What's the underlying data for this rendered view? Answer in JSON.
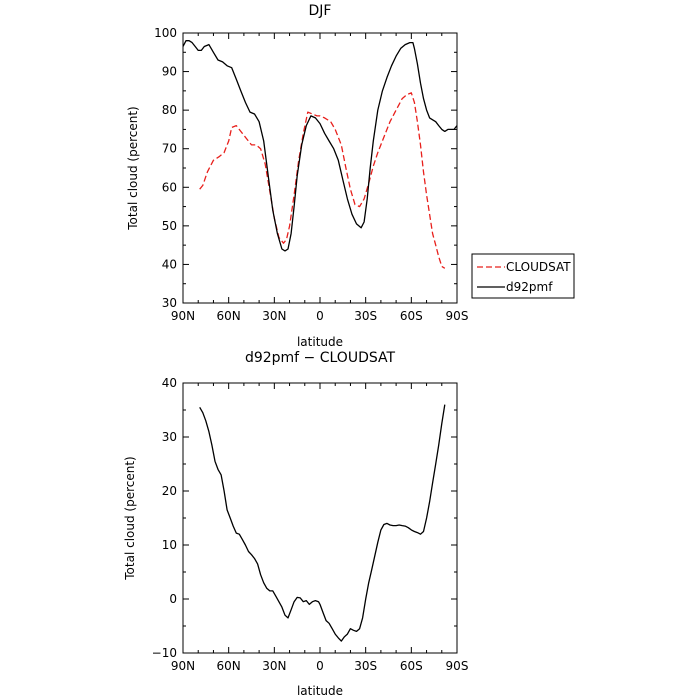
{
  "chart_data": [
    {
      "type": "line",
      "title": "DJF",
      "xlabel": "latitude",
      "ylabel": "Total cloud (percent)",
      "xlim": [
        90,
        -90
      ],
      "ylim": [
        30,
        100
      ],
      "x_ticks": [
        90,
        60,
        30,
        0,
        -30,
        -60,
        -90
      ],
      "x_tick_labels": [
        "90N",
        "60N",
        "30N",
        "0",
        "30S",
        "60S",
        "90S"
      ],
      "y_ticks": [
        30,
        40,
        50,
        60,
        70,
        80,
        90,
        100
      ],
      "y_tick_labels": [
        "30",
        "40",
        "50",
        "60",
        "70",
        "80",
        "90",
        "100"
      ],
      "legend": "outside-right",
      "series": [
        {
          "name": "CLOUDSAT",
          "color": "#e8201c",
          "dash": "dashed",
          "x": [
            79,
            77,
            74,
            70,
            66,
            63,
            60,
            58,
            55,
            52,
            48,
            45,
            42,
            39,
            36,
            33,
            30,
            27,
            24,
            22,
            20,
            17,
            14,
            11,
            8,
            5,
            2,
            0,
            -3,
            -7,
            -10,
            -14,
            -17,
            -20,
            -23,
            -26,
            -29,
            -32,
            -35,
            -38,
            -42,
            -46,
            -50,
            -54,
            -57,
            -60,
            -62,
            -64,
            -66,
            -68,
            -70,
            -72,
            -74,
            -76,
            -78,
            -80,
            -82
          ],
          "values": [
            59.5,
            60.5,
            64,
            67,
            68,
            69,
            72,
            75.5,
            76,
            74.5,
            72.5,
            71,
            71,
            70,
            66,
            59,
            52,
            47,
            45.5,
            46.5,
            50,
            58,
            67,
            74,
            79.5,
            79,
            78.5,
            78.5,
            78,
            77,
            75,
            71,
            65,
            59.5,
            55.5,
            55,
            57,
            61,
            65.5,
            69,
            73,
            77,
            80,
            83,
            84,
            84.5,
            82,
            77,
            71,
            64,
            58,
            53,
            48,
            45,
            42,
            39.5,
            39
          ]
        },
        {
          "name": "d92pmf",
          "color": "#000000",
          "dash": "solid",
          "x": [
            90,
            88,
            86,
            84,
            82,
            80,
            78,
            76,
            73,
            70,
            67,
            64,
            61,
            58,
            55,
            52,
            49,
            46,
            43,
            40,
            37,
            34,
            31,
            28,
            25,
            23,
            21,
            19,
            17,
            15,
            12,
            9,
            6,
            3,
            0,
            -3,
            -6,
            -9,
            -12,
            -15,
            -18,
            -21,
            -24,
            -27,
            -29,
            -31,
            -33,
            -35,
            -38,
            -41,
            -44,
            -47,
            -50,
            -53,
            -56,
            -59,
            -61,
            -62,
            -64,
            -66,
            -68,
            -70,
            -72,
            -74,
            -76,
            -78,
            -80,
            -82,
            -84,
            -86,
            -88,
            -90
          ],
          "values": [
            96.5,
            98,
            98,
            97.5,
            96.5,
            95.5,
            95.5,
            96.5,
            97,
            95,
            93,
            92.5,
            91.5,
            91,
            88,
            85,
            82,
            79.5,
            79,
            77,
            72,
            63,
            54,
            48,
            44,
            43.5,
            44,
            48,
            55,
            63,
            71,
            76,
            78.5,
            78,
            76.5,
            74,
            72,
            70,
            67,
            62,
            57,
            53,
            50.5,
            49.5,
            51,
            57,
            65,
            72,
            80,
            85,
            88.5,
            91.5,
            94,
            96,
            97,
            97.5,
            97.5,
            96,
            92,
            87,
            83,
            80,
            78,
            77.5,
            77,
            76,
            75,
            74.5,
            75,
            75,
            75,
            76
          ]
        }
      ]
    },
    {
      "type": "line",
      "title": "d92pmf − CLOUDSAT",
      "xlabel": "latitude",
      "ylabel": "Total cloud (percent)",
      "xlim": [
        90,
        -90
      ],
      "ylim": [
        -10,
        40
      ],
      "x_ticks": [
        90,
        60,
        30,
        0,
        -30,
        -60,
        -90
      ],
      "x_tick_labels": [
        "90N",
        "60N",
        "30N",
        "0",
        "30S",
        "60S",
        "90S"
      ],
      "y_ticks": [
        -10,
        0,
        10,
        20,
        30,
        40
      ],
      "y_tick_labels": [
        "−10",
        "0",
        "10",
        "20",
        "30",
        "40"
      ],
      "series": [
        {
          "color": "#000000",
          "dash": "solid",
          "x": [
            79,
            77,
            75,
            73,
            71,
            69,
            67,
            65,
            63,
            61,
            59,
            57,
            55,
            53,
            51,
            49,
            47,
            45,
            43,
            41,
            39,
            37,
            35,
            33,
            31,
            29,
            27,
            25,
            23,
            21,
            19,
            17,
            15,
            13,
            11,
            9,
            7,
            5,
            3,
            1,
            0,
            -2,
            -4,
            -6,
            -8,
            -10,
            -12,
            -14,
            -16,
            -18,
            -20,
            -22,
            -24,
            -26,
            -28,
            -30,
            -32,
            -34,
            -36,
            -38,
            -40,
            -42,
            -44,
            -46,
            -48,
            -50,
            -52,
            -54,
            -56,
            -58,
            -60,
            -62,
            -64,
            -66,
            -68,
            -70,
            -72,
            -74,
            -76,
            -78,
            -80,
            -82
          ],
          "values": [
            35.5,
            34.5,
            33,
            31,
            28.5,
            25.5,
            24,
            23,
            20,
            16.5,
            15,
            13.5,
            12.2,
            12,
            11,
            10,
            8.8,
            8.2,
            7.5,
            6.5,
            4.5,
            3,
            2,
            1.5,
            1.5,
            0.5,
            -0.5,
            -1.5,
            -3,
            -3.5,
            -2,
            -0.5,
            0.3,
            0.2,
            -0.5,
            -0.3,
            -1,
            -0.5,
            -0.3,
            -0.5,
            -1,
            -2.5,
            -4,
            -4.5,
            -5.5,
            -6.5,
            -7.2,
            -7.8,
            -7,
            -6.5,
            -5.5,
            -5.8,
            -6,
            -5.5,
            -3.5,
            0,
            3,
            5.5,
            8,
            10.5,
            12.8,
            13.8,
            14,
            13.7,
            13.6,
            13.6,
            13.7,
            13.6,
            13.5,
            13.2,
            12.8,
            12.5,
            12.3,
            12,
            12.5,
            15,
            18,
            21.5,
            25,
            28.5,
            32.5,
            36
          ]
        }
      ]
    }
  ]
}
